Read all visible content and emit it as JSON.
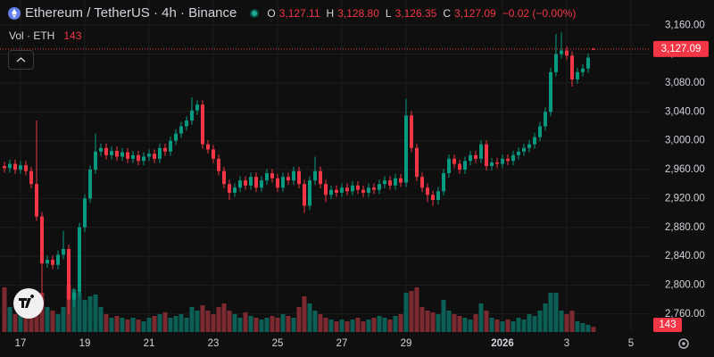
{
  "header": {
    "title": "Ethereum / TetherUS · 4h · Binance",
    "open_label": "O",
    "open": "3,127.11",
    "high_label": "H",
    "high": "3,128.80",
    "low_label": "L",
    "low": "3,126.35",
    "close_label": "C",
    "close": "3,127.09",
    "change": "−0.02 (−0.00%)",
    "volume_title": "Vol · ETH",
    "volume": "143"
  },
  "chart_data": {
    "type": "candlestick",
    "categories": [
      null,
      null,
      null,
      "17",
      null,
      null,
      null,
      null,
      null,
      null,
      null,
      null,
      null,
      null,
      null,
      "19",
      null,
      null,
      null,
      null,
      null,
      null,
      null,
      null,
      null,
      null,
      null,
      "21",
      null,
      null,
      null,
      null,
      null,
      null,
      null,
      null,
      null,
      null,
      null,
      "23",
      null,
      null,
      null,
      null,
      null,
      null,
      null,
      null,
      null,
      null,
      null,
      "25",
      null,
      null,
      null,
      null,
      null,
      null,
      null,
      null,
      null,
      null,
      null,
      "27",
      null,
      null,
      null,
      null,
      null,
      null,
      null,
      null,
      null,
      null,
      null,
      "29",
      null,
      null,
      null,
      null,
      null,
      null,
      null,
      null,
      null,
      null,
      null,
      null,
      null,
      null,
      null,
      null,
      null,
      "2026",
      null,
      null,
      null,
      null,
      null,
      null,
      null,
      null,
      null,
      null,
      null,
      "3",
      null,
      null,
      null,
      null,
      null,
      null,
      null,
      null,
      null,
      null,
      null,
      "5"
    ],
    "open": [
      2965,
      2962,
      2968,
      2960,
      2966,
      2958,
      2940,
      2895,
      2830,
      2835,
      2828,
      2842,
      2850,
      2780,
      2790,
      2880,
      2920,
      2960,
      2985,
      2990,
      2980,
      2986,
      2978,
      2984,
      2975,
      2980,
      2972,
      2978,
      2982,
      2975,
      2990,
      2985,
      3000,
      3010,
      3020,
      3028,
      3042,
      3050,
      2995,
      2988,
      2975,
      2958,
      2940,
      2928,
      2935,
      2945,
      2938,
      2950,
      2935,
      2945,
      2955,
      2948,
      2935,
      2950,
      2945,
      2958,
      2940,
      2910,
      2945,
      2958,
      2940,
      2925,
      2932,
      2928,
      2935,
      2930,
      2938,
      2932,
      2928,
      2935,
      2932,
      2940,
      2945,
      2938,
      2948,
      2942,
      3035,
      2990,
      2950,
      2935,
      2925,
      2918,
      2930,
      2955,
      2975,
      2968,
      2960,
      2972,
      2980,
      2975,
      2995,
      2965,
      2970,
      2968,
      2975,
      2972,
      2980,
      2985,
      2990,
      2995,
      3005,
      3020,
      3040,
      3095,
      3120,
      3125,
      3118,
      3085,
      3095,
      3100,
      3127.11,
      null,
      null,
      null,
      null,
      null,
      null,
      null
    ],
    "high": [
      2971,
      2974,
      2974,
      2972,
      2972,
      2964,
      3028,
      2901,
      2841,
      2841,
      2848,
      2875,
      2856,
      2796,
      2886,
      2926,
      2966,
      3010,
      2996,
      2996,
      2992,
      2992,
      2990,
      2990,
      2986,
      2986,
      2984,
      2988,
      2988,
      2996,
      2996,
      3006,
      3016,
      3026,
      3034,
      3060,
      3056,
      3056,
      3001,
      2994,
      2981,
      2964,
      2946,
      2941,
      2951,
      2951,
      2956,
      2956,
      2951,
      2961,
      2961,
      2954,
      2956,
      2956,
      2964,
      2964,
      2946,
      2951,
      2978,
      2964,
      2946,
      2938,
      2938,
      2941,
      2941,
      2944,
      2944,
      2938,
      2941,
      2941,
      2946,
      2951,
      2951,
      2954,
      2954,
      3058,
      3041,
      2996,
      2956,
      2941,
      2931,
      2936,
      2961,
      2981,
      2981,
      2974,
      2978,
      2986,
      2986,
      3001,
      3001,
      2976,
      2976,
      2981,
      2981,
      2986,
      2991,
      2996,
      3001,
      3011,
      3026,
      3046,
      3101,
      3148,
      3150,
      3131,
      3124,
      3101,
      3106,
      3121,
      3128.8,
      null,
      null,
      null,
      null,
      null,
      null,
      null
    ],
    "low": [
      2956,
      2956,
      2954,
      2954,
      2952,
      2934,
      2889,
      2768,
      2824,
      2822,
      2822,
      2836,
      2760,
      2770,
      2784,
      2874,
      2914,
      2954,
      2979,
      2974,
      2974,
      2972,
      2972,
      2969,
      2969,
      2966,
      2966,
      2972,
      2969,
      2969,
      2979,
      2979,
      2994,
      3004,
      3014,
      3022,
      3036,
      2989,
      2982,
      2969,
      2952,
      2934,
      2918,
      2922,
      2929,
      2932,
      2932,
      2929,
      2929,
      2939,
      2942,
      2929,
      2929,
      2939,
      2939,
      2934,
      2900,
      2904,
      2939,
      2934,
      2915,
      2919,
      2922,
      2922,
      2924,
      2924,
      2926,
      2922,
      2922,
      2926,
      2926,
      2934,
      2932,
      2932,
      2936,
      2936,
      2984,
      2944,
      2929,
      2915,
      2910,
      2912,
      2924,
      2949,
      2962,
      2954,
      2954,
      2966,
      2969,
      2969,
      2959,
      2959,
      2962,
      2962,
      2966,
      2966,
      2974,
      2979,
      2984,
      2989,
      2999,
      3014,
      3034,
      3089,
      3114,
      3112,
      3075,
      3079,
      3089,
      3094,
      3126.35,
      null,
      null,
      null,
      null,
      null,
      null,
      null
    ],
    "close": [
      2962,
      2968,
      2960,
      2966,
      2958,
      2940,
      2895,
      2830,
      2835,
      2828,
      2842,
      2850,
      2780,
      2790,
      2880,
      2920,
      2960,
      2985,
      2990,
      2980,
      2986,
      2978,
      2984,
      2975,
      2980,
      2972,
      2978,
      2982,
      2975,
      2990,
      2985,
      3000,
      3010,
      3020,
      3028,
      3042,
      3050,
      2995,
      2988,
      2975,
      2958,
      2940,
      2928,
      2935,
      2945,
      2938,
      2950,
      2935,
      2945,
      2955,
      2948,
      2935,
      2950,
      2945,
      2958,
      2940,
      2910,
      2945,
      2958,
      2940,
      2925,
      2932,
      2928,
      2935,
      2930,
      2938,
      2932,
      2928,
      2935,
      2932,
      2940,
      2945,
      2938,
      2948,
      2942,
      3035,
      2990,
      2950,
      2935,
      2925,
      2918,
      2930,
      2955,
      2975,
      2968,
      2960,
      2972,
      2980,
      2975,
      2995,
      2965,
      2970,
      2968,
      2975,
      2972,
      2980,
      2985,
      2990,
      2995,
      3005,
      3020,
      3040,
      3095,
      3120,
      3125,
      3118,
      3085,
      3095,
      3100,
      3115,
      3127.09,
      null,
      null,
      null,
      null,
      null,
      null,
      null
    ],
    "volume": [
      1250,
      700,
      500,
      900,
      600,
      900,
      1000,
      1100,
      700,
      600,
      500,
      700,
      1300,
      1200,
      1100,
      900,
      1000,
      1050,
      700,
      500,
      400,
      450,
      400,
      350,
      400,
      350,
      300,
      400,
      450,
      500,
      550,
      400,
      450,
      500,
      400,
      700,
      600,
      750,
      600,
      500,
      700,
      800,
      600,
      500,
      400,
      550,
      450,
      400,
      350,
      400,
      450,
      400,
      500,
      450,
      400,
      700,
      1000,
      800,
      600,
      500,
      400,
      350,
      300,
      350,
      300,
      350,
      400,
      300,
      350,
      400,
      450,
      400,
      350,
      450,
      500,
      1100,
      1150,
      1250,
      700,
      600,
      550,
      500,
      900,
      600,
      500,
      450,
      400,
      350,
      500,
      800,
      600,
      400,
      350,
      300,
      350,
      300,
      400,
      350,
      500,
      450,
      600,
      800,
      1100,
      1100,
      600,
      500,
      600,
      300,
      250,
      200,
      143,
      null,
      null,
      null,
      null,
      null,
      null,
      null
    ],
    "up_color": "#089981",
    "down_color": "#f23645",
    "volume_up_color": "#0b5f55",
    "volume_down_color": "#7c2a30",
    "ylim": [
      2735,
      3195
    ],
    "yticks": [
      {
        "value": 2760,
        "label": "2,760.00"
      },
      {
        "value": 2800,
        "label": "2,800.00"
      },
      {
        "value": 2840,
        "label": "2,840.00"
      },
      {
        "value": 2880,
        "label": "2,880.00"
      },
      {
        "value": 2920,
        "label": "2,920.00"
      },
      {
        "value": 2960,
        "label": "2,960.00"
      },
      {
        "value": 3000,
        "label": "3,000.00"
      },
      {
        "value": 3040,
        "label": "3,040.00"
      },
      {
        "value": 3080,
        "label": "3,080.00"
      },
      {
        "value": 3120,
        "label": "3,120.00"
      },
      {
        "value": 3160,
        "label": "3,160.00"
      }
    ],
    "volume_lim": [
      0,
      9300
    ],
    "grid": true,
    "price_label": "3,127.09",
    "volume_label": "143"
  }
}
